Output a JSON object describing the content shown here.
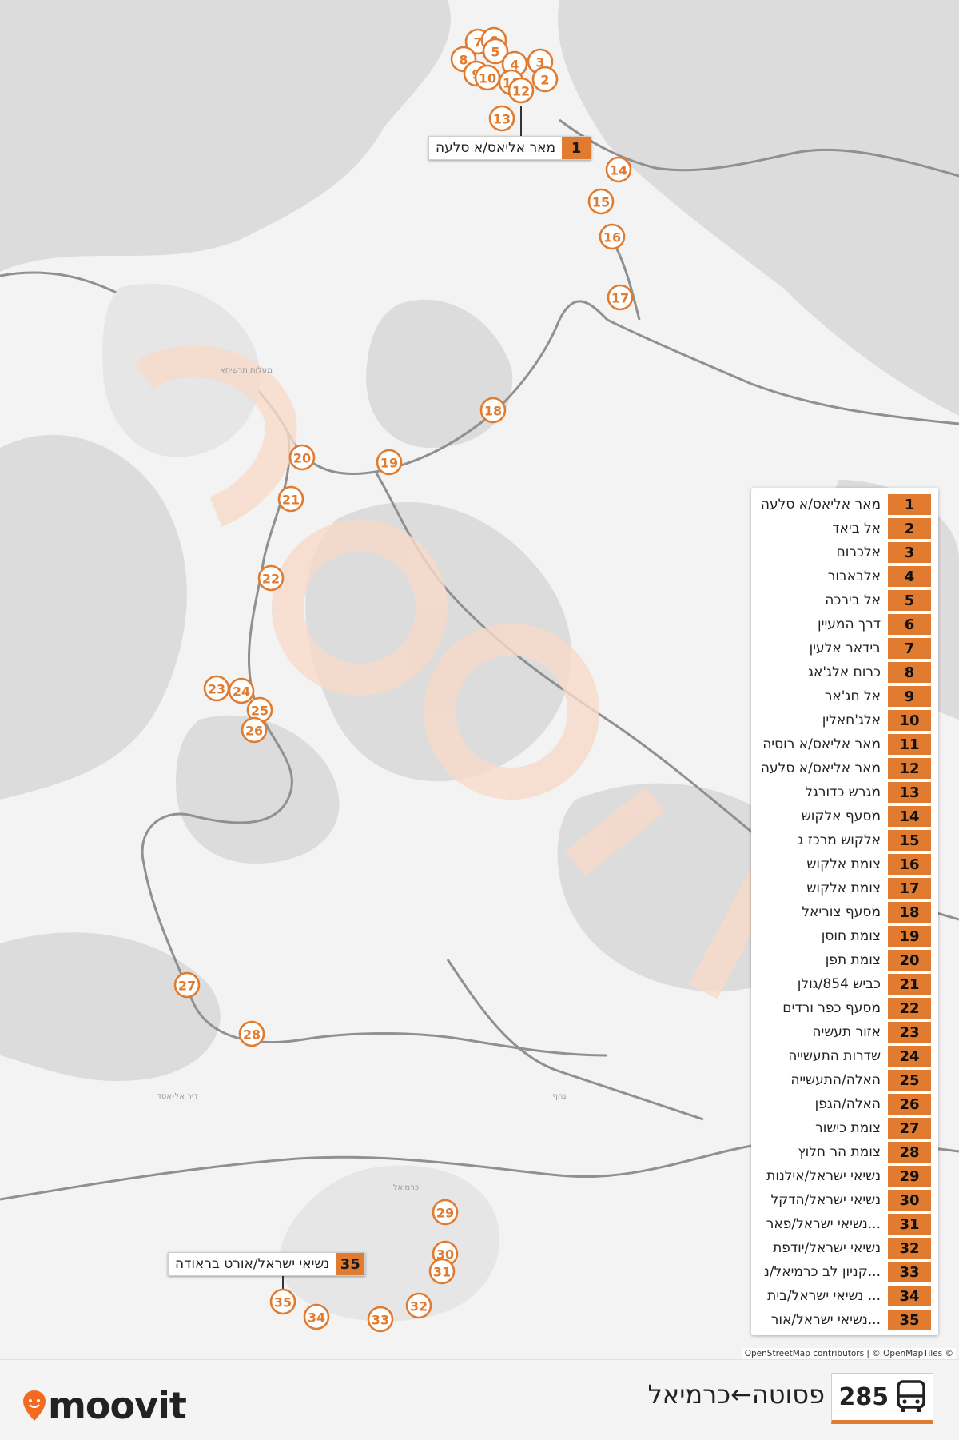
{
  "map": {
    "place_labels": [
      {
        "text": "מעלות תרשיחא"
      },
      {
        "text": "דיר אל-אסד"
      },
      {
        "text": "נחף"
      },
      {
        "text": "כרמיאל"
      }
    ],
    "stops_on_map": [
      "7",
      "6",
      "5",
      "8",
      "4",
      "3",
      "9",
      "10",
      "11",
      "2",
      "12",
      "13",
      "14",
      "15",
      "16",
      "17",
      "18",
      "19",
      "20",
      "21",
      "22",
      "23",
      "24",
      "25",
      "26",
      "27",
      "28",
      "29",
      "30",
      "31",
      "32",
      "33",
      "34",
      "35"
    ]
  },
  "callouts": {
    "first": {
      "num": "1",
      "label": "מאר אליאס/א סלעה"
    },
    "last": {
      "num": "35",
      "label": "נשיאי ישראל/אורט בראודה"
    }
  },
  "legend": [
    {
      "num": "1",
      "label": "מאר אליאס/א סלעה"
    },
    {
      "num": "2",
      "label": "אל ביאד"
    },
    {
      "num": "3",
      "label": "אלכרום"
    },
    {
      "num": "4",
      "label": "אלבאבור"
    },
    {
      "num": "5",
      "label": "אל בירכה"
    },
    {
      "num": "6",
      "label": "דרך המעיין"
    },
    {
      "num": "7",
      "label": "בידאר אלעין"
    },
    {
      "num": "8",
      "label": "כרום אלג'אג"
    },
    {
      "num": "9",
      "label": "אל חג'אר"
    },
    {
      "num": "10",
      "label": "אלג'חאלין"
    },
    {
      "num": "11",
      "label": "מאר אליאס/א רוסיה"
    },
    {
      "num": "12",
      "label": "מאר אליאס/א סלעה"
    },
    {
      "num": "13",
      "label": "מגרש כדורגל"
    },
    {
      "num": "14",
      "label": "מסעף אלקוש"
    },
    {
      "num": "15",
      "label": "אלקוש מרכז ג"
    },
    {
      "num": "16",
      "label": "צומת אלקוש"
    },
    {
      "num": "17",
      "label": "צומת אלקוש"
    },
    {
      "num": "18",
      "label": "מסעף צוריאל"
    },
    {
      "num": "19",
      "label": "צומת חוסן"
    },
    {
      "num": "20",
      "label": "צומת תפן"
    },
    {
      "num": "21",
      "label": "כביש 854/גולן"
    },
    {
      "num": "22",
      "label": "מסעף כפר ורדים"
    },
    {
      "num": "23",
      "label": "אזור תעשיה"
    },
    {
      "num": "24",
      "label": "שדרות התעשייה"
    },
    {
      "num": "25",
      "label": "האלה/התעשייה"
    },
    {
      "num": "26",
      "label": "האלה/הגפן"
    },
    {
      "num": "27",
      "label": "צומת כישור"
    },
    {
      "num": "28",
      "label": "צומת הר חלוץ"
    },
    {
      "num": "29",
      "label": "נשיאי ישראל/אילנות"
    },
    {
      "num": "30",
      "label": "נשיאי ישראל/הדקל"
    },
    {
      "num": "31",
      "label": "נשיאי ישראל/פאר..."
    },
    {
      "num": "32",
      "label": "נשיאי ישראל/יודפת"
    },
    {
      "num": "33",
      "label": "קניון לב כרמיאל/נ..."
    },
    {
      "num": "34",
      "label": "נשיאי ישראל/בית ..."
    },
    {
      "num": "35",
      "label": "נשיאי ישראל/אור..."
    }
  ],
  "attribution": "OpenStreetMap contributors | © OpenMapTiles ©",
  "footer": {
    "brand": "moovit",
    "route_number": "285",
    "route_title": "פסוטה←כרמיאל",
    "bus_icon": "bus-icon",
    "pin_icon": "location-pin-icon"
  },
  "colors": {
    "accent": "#e07b30",
    "terrain": "#d9d9d9",
    "land": "#f3f3f3",
    "road": "#8f8f8f"
  }
}
